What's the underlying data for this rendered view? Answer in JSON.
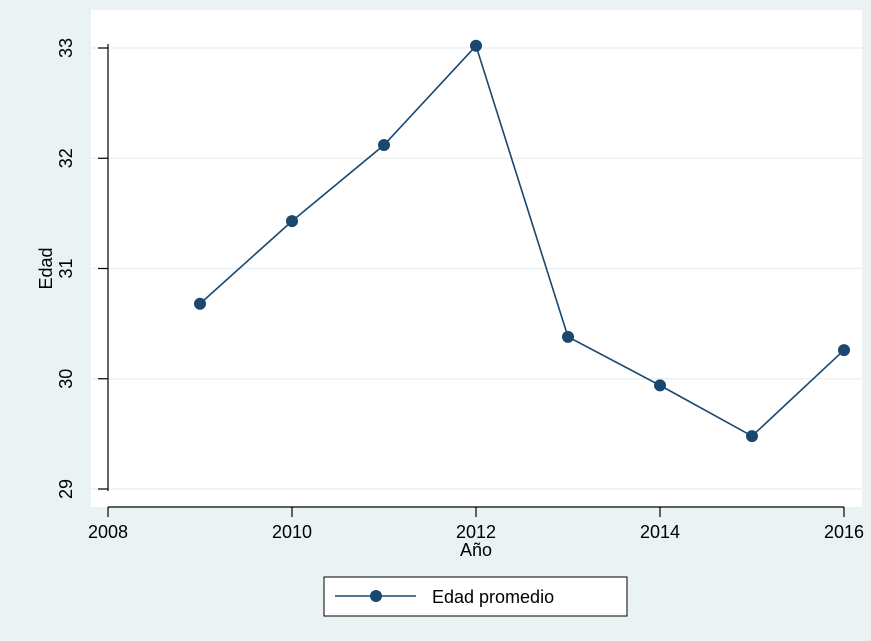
{
  "chart_data": {
    "type": "line",
    "x": [
      2009,
      2010,
      2011,
      2012,
      2013,
      2014,
      2015,
      2016
    ],
    "series": [
      {
        "name": "Edad promedio",
        "values": [
          30.68,
          31.43,
          32.12,
          33.02,
          30.38,
          29.94,
          29.48,
          30.26
        ]
      }
    ],
    "xlabel": "Año",
    "ylabel": "Edad",
    "xlim": [
      2008,
      2016
    ],
    "ylim": [
      29,
      33
    ],
    "xticks": [
      "2008",
      "2010",
      "2012",
      "2014",
      "2016"
    ],
    "yticks": [
      "29",
      "30",
      "31",
      "32",
      "33"
    ],
    "grid": true,
    "legend_position": "bottom",
    "colors": {
      "series": "#1a476f",
      "outer_background": "#eaf2f3",
      "plot_background": "#ffffff",
      "grid": "#eaf2f3"
    }
  }
}
